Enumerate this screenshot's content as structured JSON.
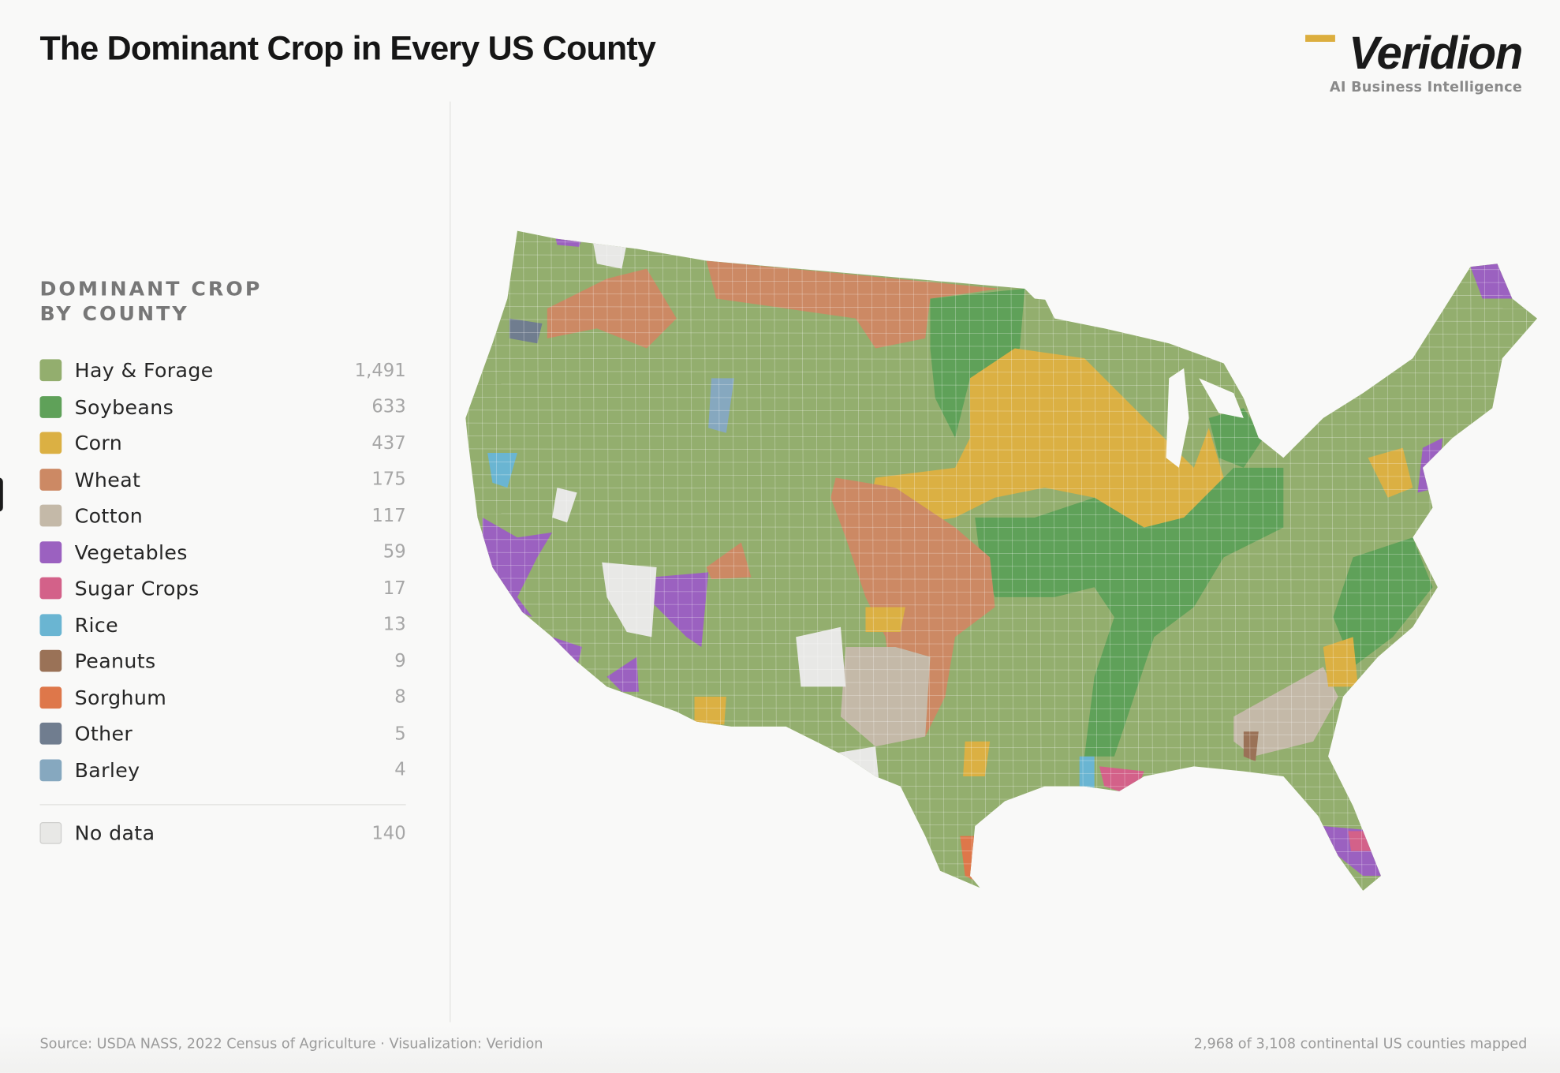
{
  "title": "The Dominant Crop in Every US County",
  "brand": {
    "name": "Veridion",
    "tagline": "AI Business Intelligence",
    "accent": "#dcae3e"
  },
  "legend": {
    "heading_line1": "DOMINANT CROP",
    "heading_line2": "BY COUNTY",
    "items": [
      {
        "key": "hay",
        "label": "Hay & Forage",
        "count": "1,491",
        "color": "#93ae6e"
      },
      {
        "key": "soy",
        "label": "Soybeans",
        "count": "633",
        "color": "#5fa159"
      },
      {
        "key": "corn",
        "label": "Corn",
        "count": "437",
        "color": "#dbb043"
      },
      {
        "key": "wheat",
        "label": "Wheat",
        "count": "175",
        "color": "#cc8964"
      },
      {
        "key": "cotton",
        "label": "Cotton",
        "count": "117",
        "color": "#c4b9a8"
      },
      {
        "key": "veg",
        "label": "Vegetables",
        "count": "59",
        "color": "#9b61c0"
      },
      {
        "key": "sugar",
        "label": "Sugar Crops",
        "count": "17",
        "color": "#d36189"
      },
      {
        "key": "rice",
        "label": "Rice",
        "count": "13",
        "color": "#6ab5d2"
      },
      {
        "key": "peanuts",
        "label": "Peanuts",
        "count": "9",
        "color": "#9a7257"
      },
      {
        "key": "sorghum",
        "label": "Sorghum",
        "count": "8",
        "color": "#de774a"
      },
      {
        "key": "other",
        "label": "Other",
        "count": "5",
        "color": "#707d8f"
      },
      {
        "key": "barley",
        "label": "Barley",
        "count": "4",
        "color": "#86a8bf"
      }
    ],
    "no_data": {
      "key": "nodata",
      "label": "No data",
      "count": "140",
      "color": "#e8e8e6"
    }
  },
  "footer": {
    "source": "Source: USDA NASS, 2022 Census of Agriculture · Visualization: Veridion",
    "coverage": "2,968 of 3,108 continental US counties mapped"
  }
}
